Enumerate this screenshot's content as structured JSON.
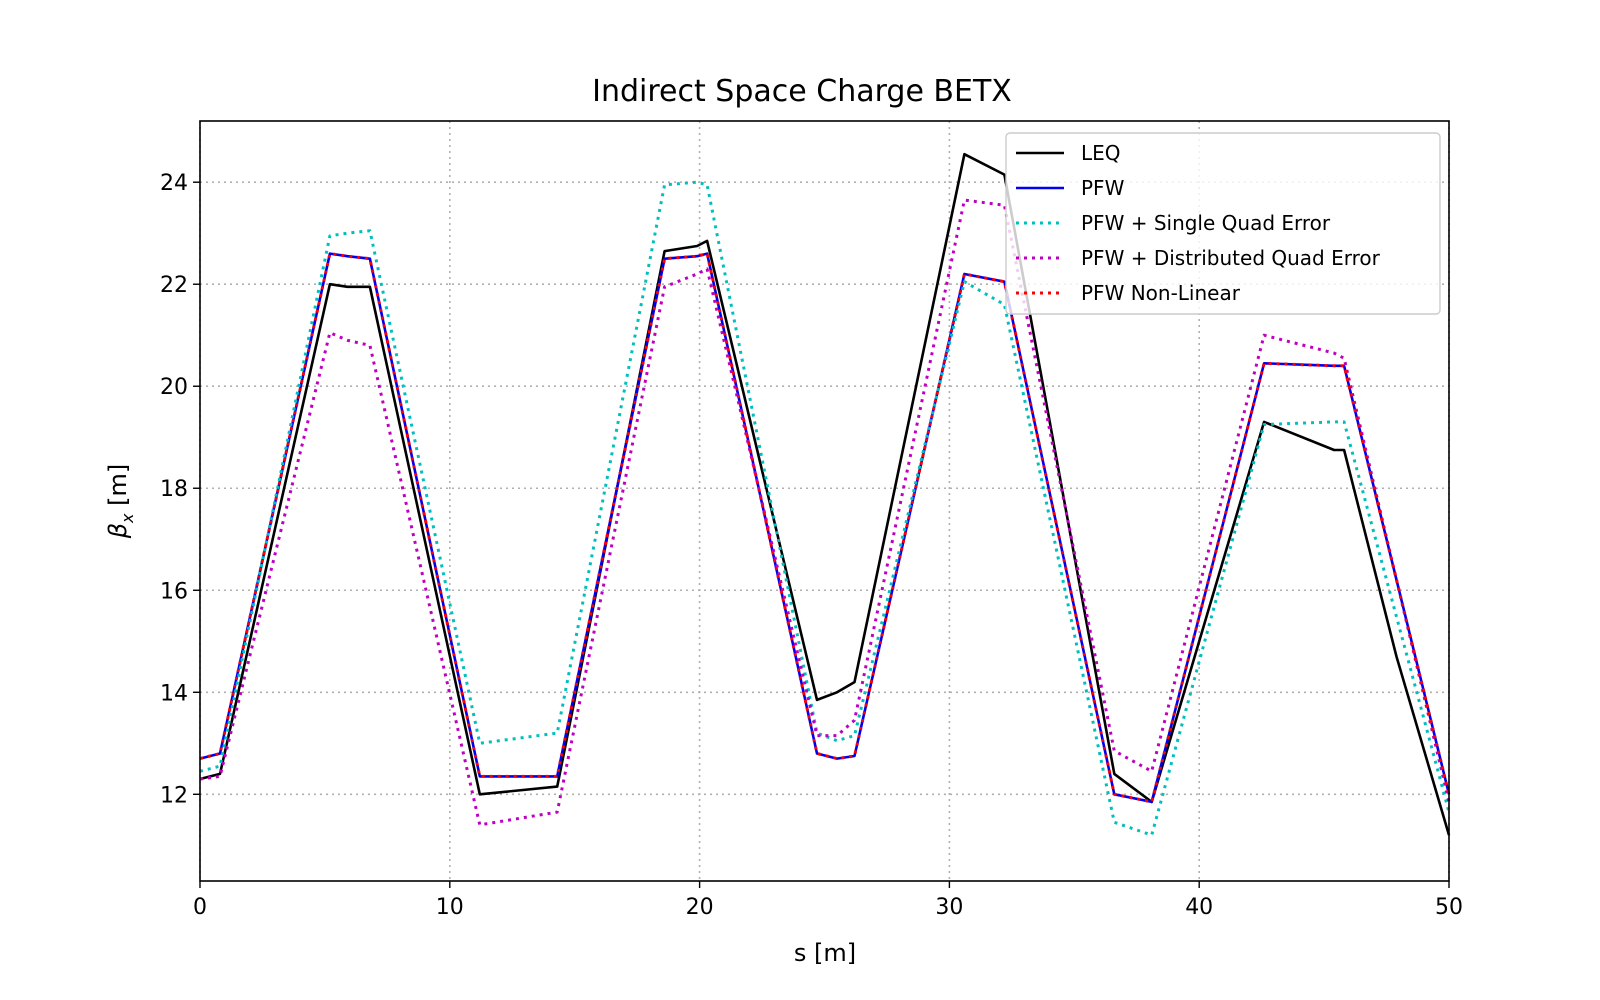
{
  "chart_data": {
    "type": "line",
    "title": "Indirect Space Charge BETX",
    "xlabel": "s [m]",
    "ylabel_symbol": "β",
    "ylabel_sub": "x",
    "ylabel_unit": " [m]",
    "xlim": [
      0,
      50
    ],
    "ylim": [
      10.3,
      25.2
    ],
    "xticks": [
      0,
      10,
      20,
      30,
      40,
      50
    ],
    "yticks": [
      12,
      14,
      16,
      18,
      20,
      22,
      24
    ],
    "grid": true,
    "legend_position": "top-right",
    "series": [
      {
        "name": "LEQ",
        "color": "#000000",
        "style": "solid",
        "x": [
          0,
          0.8,
          5.2,
          5.9,
          6.8,
          11.2,
          14.3,
          18.6,
          19.9,
          20.3,
          24.7,
          25.5,
          26.2,
          30.6,
          32.2,
          36.6,
          38.1,
          42.6,
          45.4,
          45.8,
          47.9,
          50
        ],
        "y": [
          12.3,
          12.4,
          22.0,
          21.95,
          21.95,
          12.0,
          12.15,
          22.65,
          22.75,
          22.85,
          13.85,
          14.0,
          14.2,
          24.55,
          24.15,
          12.4,
          11.85,
          19.3,
          18.75,
          18.75,
          14.7,
          11.2
        ]
      },
      {
        "name": "PFW",
        "color": "#0000ee",
        "style": "solid",
        "x": [
          0,
          0.8,
          5.2,
          5.9,
          6.8,
          11.2,
          14.3,
          18.6,
          19.9,
          20.3,
          24.7,
          25.5,
          26.2,
          30.6,
          32.2,
          36.6,
          38.1,
          42.6,
          45.4,
          45.8,
          50
        ],
        "y": [
          12.7,
          12.8,
          22.6,
          22.55,
          22.5,
          12.35,
          12.35,
          22.5,
          22.55,
          22.6,
          12.8,
          12.7,
          12.75,
          22.2,
          22.05,
          12.0,
          11.85,
          20.45,
          20.4,
          20.4,
          12.0
        ]
      },
      {
        "name": "PFW + Single Quad Error",
        "color": "#00bfbf",
        "style": "dotted",
        "x": [
          0,
          0.8,
          5.2,
          5.9,
          6.8,
          11.2,
          14.3,
          18.6,
          19.9,
          20.3,
          24.7,
          25.5,
          26.2,
          30.6,
          32.2,
          36.6,
          38.1,
          42.6,
          45.4,
          45.8,
          50
        ],
        "y": [
          12.45,
          12.55,
          22.95,
          23.0,
          23.05,
          13.0,
          13.2,
          23.95,
          24.0,
          23.95,
          13.2,
          13.05,
          13.15,
          22.05,
          21.6,
          11.45,
          11.2,
          19.25,
          19.3,
          19.3,
          11.65
        ]
      },
      {
        "name": "PFW + Distributed Quad Error",
        "color": "#bf00bf",
        "style": "dotted",
        "x": [
          0,
          0.8,
          5.2,
          5.9,
          6.8,
          11.2,
          14.3,
          18.6,
          19.9,
          20.3,
          24.7,
          25.5,
          26.2,
          30.6,
          32.2,
          36.6,
          38.1,
          42.6,
          45.4,
          45.8,
          50
        ],
        "y": [
          12.3,
          12.35,
          21.05,
          20.9,
          20.8,
          11.4,
          11.65,
          21.95,
          22.2,
          22.3,
          13.15,
          13.15,
          13.45,
          23.65,
          23.55,
          12.85,
          12.45,
          21.0,
          20.65,
          20.55,
          11.85
        ]
      },
      {
        "name": "PFW Non-Linear",
        "color": "#ff0000",
        "style": "dotted",
        "x": [
          0,
          0.8,
          5.2,
          5.9,
          6.8,
          11.2,
          14.3,
          18.6,
          19.9,
          20.3,
          24.7,
          25.5,
          26.2,
          30.6,
          32.2,
          36.6,
          38.1,
          42.6,
          45.4,
          45.8,
          50
        ],
        "y": [
          12.7,
          12.8,
          22.6,
          22.55,
          22.5,
          12.35,
          12.35,
          22.5,
          22.55,
          22.6,
          12.8,
          12.7,
          12.75,
          22.2,
          22.05,
          12.0,
          11.85,
          20.45,
          20.4,
          20.4,
          12.0
        ]
      }
    ]
  }
}
